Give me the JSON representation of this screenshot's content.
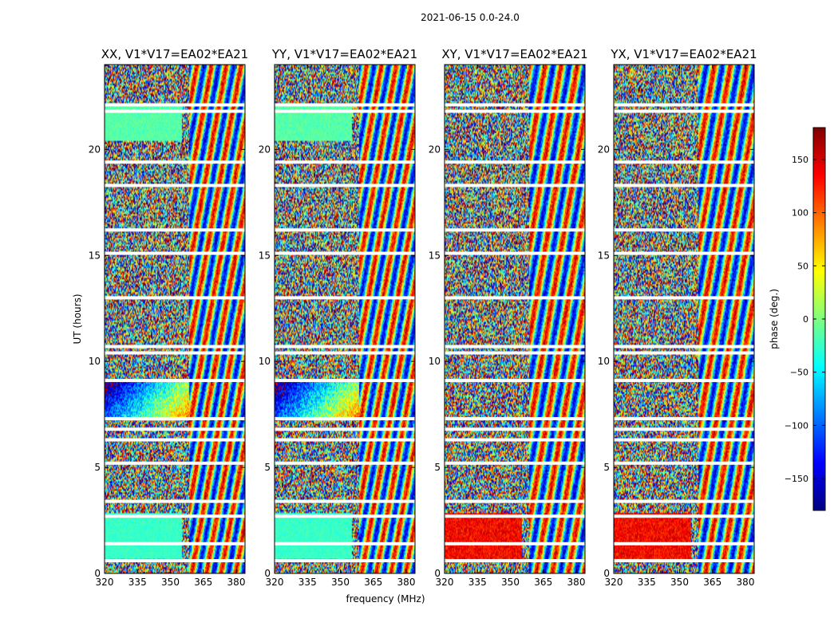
{
  "chart_data": {
    "type": "heatmap",
    "suptitle": "2021-06-15 0.0-24.0",
    "xlabel": "frequency (MHz)",
    "ylabel": "UT (hours)",
    "xlim": [
      320,
      384
    ],
    "ylim": [
      0,
      24
    ],
    "xticks": [
      "320",
      "335",
      "350",
      "365",
      "380"
    ],
    "yticks": [
      "0",
      "5",
      "10",
      "15",
      "20"
    ],
    "panels": [
      {
        "title": "XX, V1*V17=EA02*EA21"
      },
      {
        "title": "YY, V1*V17=EA02*EA21"
      },
      {
        "title": "XY, V1*V17=EA02*EA21"
      },
      {
        "title": "YX, V1*V17=EA02*EA21"
      }
    ],
    "colorbar": {
      "label": "phase (deg.)",
      "range": [
        -180,
        180
      ],
      "ticks": [
        "150",
        "100",
        "50",
        "0",
        "−50",
        "−100",
        "−150"
      ],
      "colormap": "jet"
    },
    "flagged_ut_gaps": [
      0.6,
      1.4,
      2.7,
      3.4,
      5.2,
      6.3,
      6.8,
      7.3,
      9.1,
      10.4,
      10.7,
      13.0,
      15.1,
      16.2,
      18.3,
      19.4,
      21.8,
      22.1
    ]
  }
}
